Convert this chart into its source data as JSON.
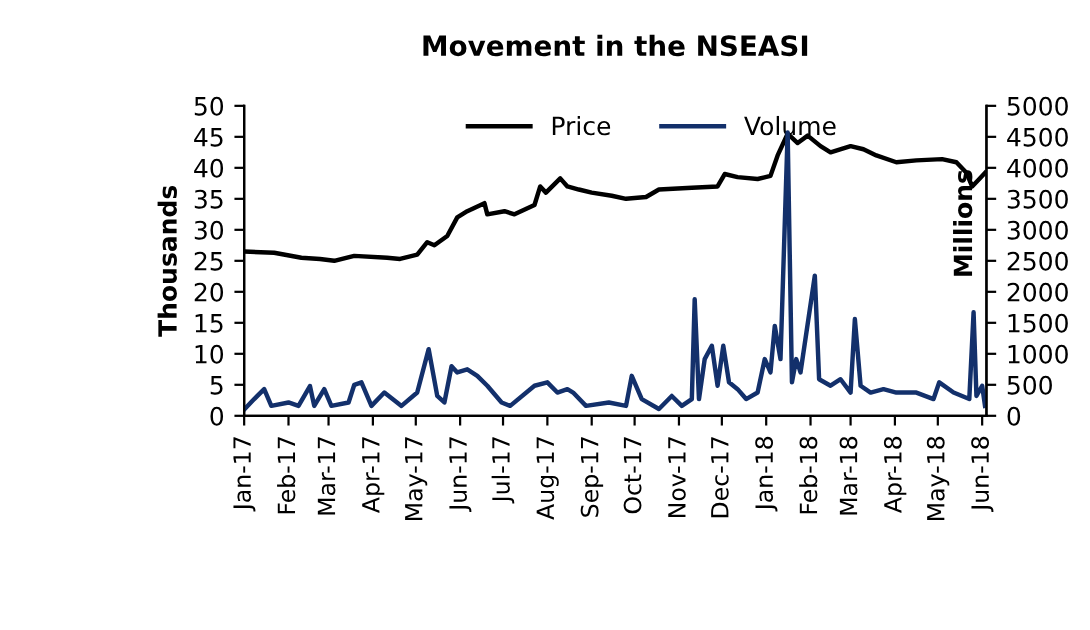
{
  "chart_data": {
    "type": "line",
    "title": "Movement in the NSEASI",
    "ylabel": "Thousands",
    "y2label": "Millions",
    "xlim": [
      "2017-01-01",
      "2018-06-04"
    ],
    "xticks": [
      {
        "value": "2017-01-01",
        "label": "Jan-17"
      },
      {
        "value": "2017-02-01",
        "label": "Feb-17"
      },
      {
        "value": "2017-03-01",
        "label": "Mar-17"
      },
      {
        "value": "2017-04-01",
        "label": "Apr-17"
      },
      {
        "value": "2017-05-01",
        "label": "May-17"
      },
      {
        "value": "2017-06-01",
        "label": "Jun-17"
      },
      {
        "value": "2017-07-01",
        "label": "Jul-17"
      },
      {
        "value": "2017-08-01",
        "label": "Aug-17"
      },
      {
        "value": "2017-09-01",
        "label": "Sep-17"
      },
      {
        "value": "2017-10-01",
        "label": "Oct-17"
      },
      {
        "value": "2017-11-01",
        "label": "Nov-17"
      },
      {
        "value": "2017-12-01",
        "label": "Dec-17"
      },
      {
        "value": "2018-01-01",
        "label": "Jan-18"
      },
      {
        "value": "2018-02-01",
        "label": "Feb-18"
      },
      {
        "value": "2018-03-01",
        "label": "Mar-18"
      },
      {
        "value": "2018-04-01",
        "label": "Apr-18"
      },
      {
        "value": "2018-05-01",
        "label": "May-18"
      },
      {
        "value": "2018-06-01",
        "label": "Jun-18"
      }
    ],
    "ylim": [
      0,
      50
    ],
    "yticks": [
      0,
      5,
      10,
      15,
      20,
      25,
      30,
      35,
      40,
      45,
      50
    ],
    "y2lim": [
      0,
      5000
    ],
    "y2ticks": [
      0,
      500,
      1000,
      1500,
      2000,
      2500,
      3000,
      3500,
      4000,
      4500,
      5000
    ],
    "grid": false,
    "legend": "top",
    "marker": "none",
    "line_style": "solid",
    "series": [
      {
        "name": "Price",
        "color": "#000000",
        "x": [
          "2017-01-01",
          "2017-01-22",
          "2017-02-10",
          "2017-02-23",
          "2017-03-05",
          "2017-03-19",
          "2017-04-11",
          "2017-04-20",
          "2017-05-02",
          "2017-05-09",
          "2017-05-14",
          "2017-05-23",
          "2017-05-30",
          "2017-06-06",
          "2017-06-18",
          "2017-06-20",
          "2017-07-02",
          "2017-07-09",
          "2017-07-23",
          "2017-07-27",
          "2017-07-31",
          "2017-08-10",
          "2017-08-15",
          "2017-08-23",
          "2017-09-01",
          "2017-09-15",
          "2017-09-25",
          "2017-10-09",
          "2017-10-18",
          "2017-11-10",
          "2017-11-28",
          "2017-12-03",
          "2017-12-12",
          "2017-12-26",
          "2018-01-04",
          "2018-01-09",
          "2018-01-16",
          "2018-01-23",
          "2018-01-30",
          "2018-02-08",
          "2018-02-15",
          "2018-03-01",
          "2018-03-10",
          "2018-03-19",
          "2018-04-02",
          "2018-04-16",
          "2018-05-04",
          "2018-05-14",
          "2018-05-21",
          "2018-05-25",
          "2018-05-30",
          "2018-06-03"
        ],
        "values": [
          26.5,
          26.3,
          25.5,
          25.3,
          25.0,
          25.8,
          25.5,
          25.3,
          26.0,
          28.0,
          27.5,
          29,
          32,
          33,
          34.3,
          32.5,
          33,
          32.5,
          34,
          37,
          36,
          38.3,
          37,
          36.5,
          36,
          35.5,
          35,
          35.3,
          36.5,
          36.8,
          37,
          39,
          38.5,
          38.2,
          38.7,
          42,
          45.5,
          44,
          45.2,
          43.5,
          42.5,
          43.5,
          43,
          42,
          40.9,
          41.2,
          41.4,
          40.9,
          39.2,
          37,
          38.2,
          39.2
        ]
      },
      {
        "name": "Volume",
        "color": "#13306b",
        "axis": "y2",
        "x": [
          "2017-01-01",
          "2017-01-08",
          "2017-01-15",
          "2017-01-20",
          "2017-02-01",
          "2017-02-08",
          "2017-02-16",
          "2017-02-19",
          "2017-02-26",
          "2017-03-03",
          "2017-03-15",
          "2017-03-19",
          "2017-03-24",
          "2017-03-31",
          "2017-04-09",
          "2017-04-21",
          "2017-05-02",
          "2017-05-10",
          "2017-05-16",
          "2017-05-21",
          "2017-05-26",
          "2017-05-30",
          "2017-06-06",
          "2017-06-13",
          "2017-06-20",
          "2017-06-30",
          "2017-07-06",
          "2017-07-23",
          "2017-08-01",
          "2017-08-08",
          "2017-08-15",
          "2017-08-19",
          "2017-08-28",
          "2017-09-13",
          "2017-09-25",
          "2017-09-29",
          "2017-10-06",
          "2017-10-18",
          "2017-10-27",
          "2017-11-03",
          "2017-11-10",
          "2017-11-12",
          "2017-11-15",
          "2017-11-19",
          "2017-11-24",
          "2017-11-28",
          "2017-12-02",
          "2017-12-06",
          "2017-12-12",
          "2017-12-18",
          "2017-12-26",
          "2017-12-31",
          "2018-01-04",
          "2018-01-07",
          "2018-01-11",
          "2018-01-16",
          "2018-01-19",
          "2018-01-22",
          "2018-01-25",
          "2018-02-04",
          "2018-02-07",
          "2018-02-15",
          "2018-02-22",
          "2018-03-01",
          "2018-03-04",
          "2018-03-08",
          "2018-03-15",
          "2018-03-24",
          "2018-04-02",
          "2018-04-16",
          "2018-04-28",
          "2018-05-02",
          "2018-05-12",
          "2018-05-23",
          "2018-05-26",
          "2018-05-28",
          "2018-06-01",
          "2018-06-03"
        ],
        "values": [
          100,
          270,
          430,
          160,
          215,
          160,
          480,
          160,
          430,
          160,
          215,
          500,
          540,
          160,
          375,
          160,
          375,
          1075,
          320,
          215,
          800,
          700,
          750,
          645,
          485,
          215,
          160,
          485,
          540,
          375,
          430,
          375,
          160,
          215,
          160,
          645,
          270,
          110,
          320,
          160,
          270,
          1880,
          270,
          915,
          1130,
          485,
          1130,
          540,
          430,
          270,
          375,
          915,
          700,
          1450,
          915,
          4570,
          540,
          915,
          700,
          2260,
          590,
          485,
          590,
          375,
          1560,
          485,
          375,
          430,
          375,
          375,
          270,
          540,
          375,
          270,
          1670,
          320,
          485,
          160
        ]
      }
    ]
  }
}
